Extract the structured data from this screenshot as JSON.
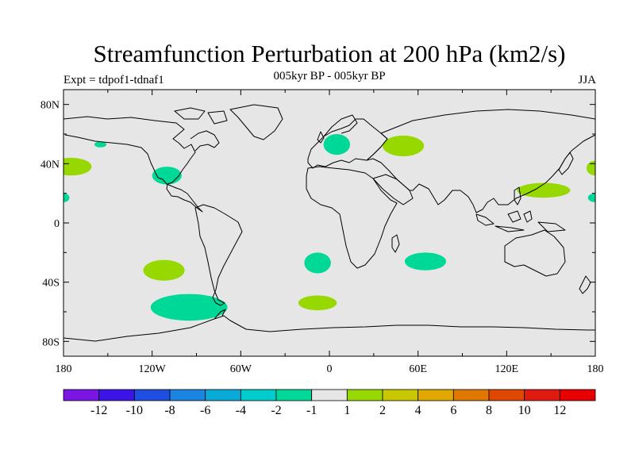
{
  "title": "Streamfunction Perturbation at 200 hPa (km2/s)",
  "subtitle": "005kyr BP - 005kyr BP",
  "left_label": "Expt = tdpof1-tdnaf1",
  "right_label": "JJA",
  "lat_ticks": [
    {
      "lat": 80,
      "label": "80N"
    },
    {
      "lat": 40,
      "label": "40N"
    },
    {
      "lat": 0,
      "label": "0"
    },
    {
      "lat": -40,
      "label": "40S"
    },
    {
      "lat": -80,
      "label": "80S"
    }
  ],
  "lon_ticks": [
    {
      "lon": -180,
      "label": "180"
    },
    {
      "lon": -120,
      "label": "120W"
    },
    {
      "lon": -60,
      "label": "60W"
    },
    {
      "lon": 0,
      "label": "0"
    },
    {
      "lon": 60,
      "label": "60E"
    },
    {
      "lon": 120,
      "label": "120E"
    },
    {
      "lon": 180,
      "label": "180"
    }
  ],
  "colorbar": {
    "colors": [
      "#7a15e3",
      "#3c14e8",
      "#1e4fe0",
      "#1a84e0",
      "#0aaad8",
      "#00cccc",
      "#00d898",
      "#e6e6e6",
      "#96d800",
      "#c8c800",
      "#e0a800",
      "#e07800",
      "#e04800",
      "#e01a10",
      "#e80000"
    ],
    "labels": [
      "-12",
      "-10",
      "-8",
      "-6",
      "-4",
      "-2",
      "-1",
      "1",
      "2",
      "4",
      "6",
      "8",
      "10",
      "12"
    ]
  },
  "chart_data": {
    "type": "map-contour",
    "variable": "Streamfunction Perturbation",
    "level_hPa": 200,
    "units": "km2/s",
    "season": "JJA",
    "lon_range": [
      -180,
      180
    ],
    "lat_range": [
      -90,
      90
    ],
    "contour_levels": [
      -12,
      -10,
      -8,
      -6,
      -4,
      -2,
      -1,
      1,
      2,
      4,
      6,
      8,
      10,
      12
    ],
    "anomalies": [
      {
        "lon": -175,
        "lat": 38,
        "rlon": 14,
        "rlat": 6,
        "sign": "positive",
        "color": "#96d800"
      },
      {
        "lon": -155,
        "lat": 53,
        "rlon": 4,
        "rlat": 2,
        "sign": "negative",
        "color": "#00d898"
      },
      {
        "lon": -110,
        "lat": 32,
        "rlon": 10,
        "rlat": 6,
        "sign": "negative",
        "color": "#00d898"
      },
      {
        "lon": 5,
        "lat": 53,
        "rlon": 9,
        "rlat": 7,
        "sign": "negative",
        "color": "#00d898"
      },
      {
        "lon": 50,
        "lat": 52,
        "rlon": 14,
        "rlat": 7,
        "sign": "positive",
        "color": "#96d800"
      },
      {
        "lon": 145,
        "lat": 22,
        "rlon": 18,
        "rlat": 5,
        "sign": "positive",
        "color": "#96d800"
      },
      {
        "lon": 180,
        "lat": 37,
        "rlon": 6,
        "rlat": 5,
        "sign": "positive",
        "color": "#96d800"
      },
      {
        "lon": -180,
        "lat": 17,
        "rlon": 4,
        "rlat": 3,
        "sign": "negative",
        "color": "#00d898"
      },
      {
        "lon": 180,
        "lat": 17,
        "rlon": 5,
        "rlat": 3,
        "sign": "negative",
        "color": "#00d898"
      },
      {
        "lon": -112,
        "lat": -32,
        "rlon": 14,
        "rlat": 7,
        "sign": "positive",
        "color": "#96d800"
      },
      {
        "lon": -8,
        "lat": -27,
        "rlon": 9,
        "rlat": 7,
        "sign": "negative",
        "color": "#00d898"
      },
      {
        "lon": 65,
        "lat": -26,
        "rlon": 14,
        "rlat": 6,
        "sign": "negative",
        "color": "#00d898"
      },
      {
        "lon": -8,
        "lat": -54,
        "rlon": 13,
        "rlat": 5,
        "sign": "positive",
        "color": "#96d800"
      },
      {
        "lon": -95,
        "lat": -57,
        "rlon": 26,
        "rlat": 9,
        "sign": "negative",
        "color": "#00d898"
      }
    ]
  }
}
